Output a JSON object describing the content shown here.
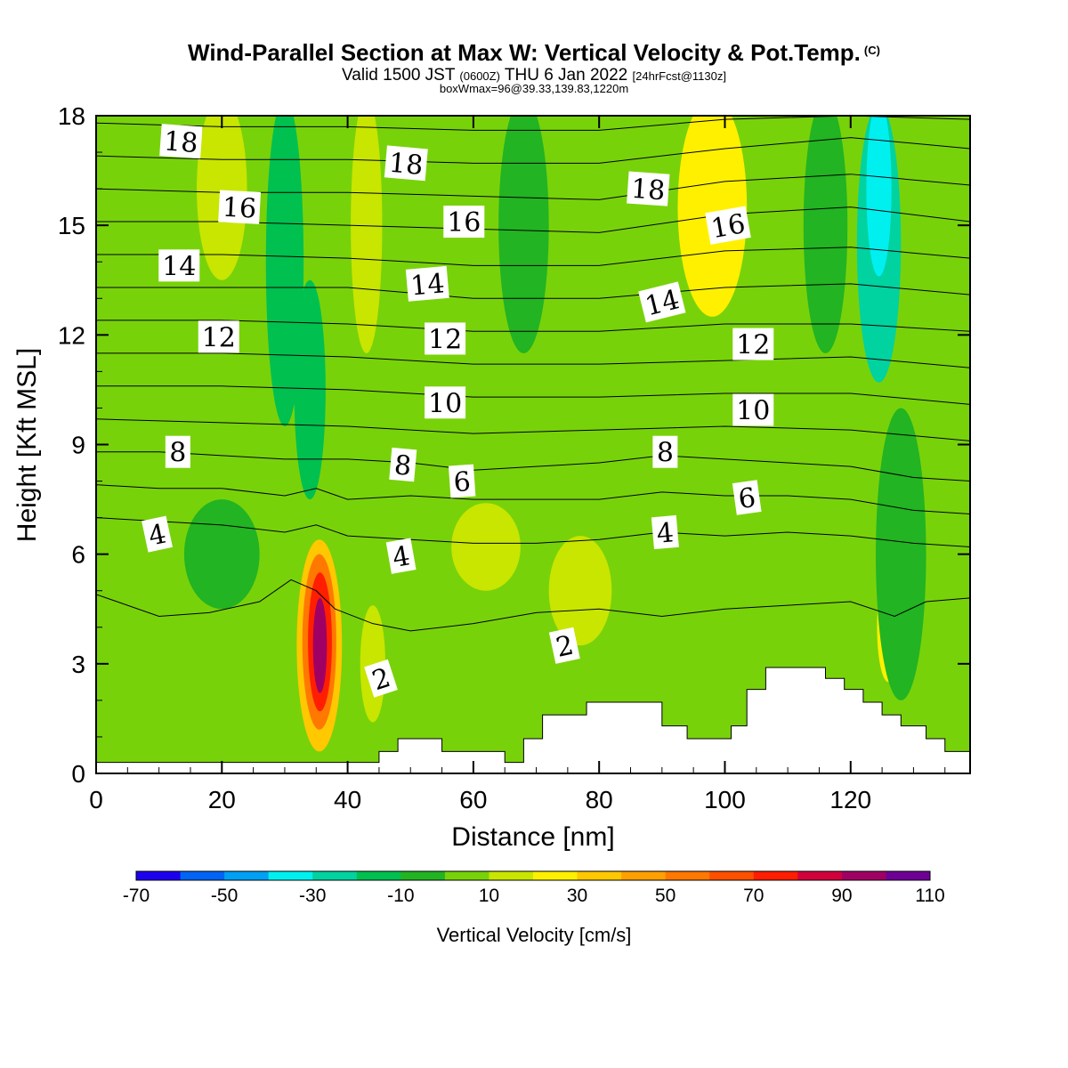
{
  "header": {
    "title": "Wind-Parallel Section at Max W: Vertical Velocity & Pot.Temp.",
    "copyright": "(C)",
    "valid_prefix": "Valid 1500 JST",
    "valid_utc": "(0600Z)",
    "valid_date": "THU 6 Jan 2022",
    "forecast": "[24hrFcst@1130z]",
    "box_info": "boxWmax=96@39.33,139.83,1220m"
  },
  "chart_data": {
    "type": "heatmap",
    "xlabel": "Distance [nm]",
    "ylabel": "Height [Kft MSL]",
    "xlim": [
      0,
      139
    ],
    "ylim": [
      0,
      18
    ],
    "xticks": [
      "0",
      "20",
      "40",
      "60",
      "80",
      "100",
      "120"
    ],
    "yticks": [
      "0",
      "3",
      "6",
      "9",
      "12",
      "15",
      "18"
    ],
    "colorbar": {
      "title": "Vertical Velocity [cm/s]",
      "labels": [
        "-70",
        "-50",
        "-30",
        "-10",
        "10",
        "30",
        "50",
        "70",
        "90",
        "110"
      ],
      "levels": [
        -70,
        -60,
        -50,
        -40,
        -30,
        -20,
        -10,
        0,
        10,
        20,
        30,
        40,
        50,
        60,
        70,
        80,
        90,
        100,
        110
      ],
      "colors": [
        "#1e00f0",
        "#0064f5",
        "#00a0f5",
        "#00f0f0",
        "#00d2a0",
        "#00c050",
        "#22b422",
        "#78d20a",
        "#c8e600",
        "#fff000",
        "#ffc800",
        "#ffa000",
        "#ff7800",
        "#ff5000",
        "#ff1e00",
        "#d2003c",
        "#a00064",
        "#6e0096"
      ]
    },
    "contour_labels": [
      {
        "text": "18",
        "x": 13.5,
        "y": 17.3,
        "angle": 4
      },
      {
        "text": "16",
        "x": 22.8,
        "y": 15.5,
        "angle": 3
      },
      {
        "text": "14",
        "x": 13.2,
        "y": 13.9,
        "angle": 0
      },
      {
        "text": "12",
        "x": 19.5,
        "y": 11.95,
        "angle": 0
      },
      {
        "text": "8",
        "x": 13,
        "y": 8.8,
        "angle": 0
      },
      {
        "text": "4",
        "x": 9.7,
        "y": 6.55,
        "angle": -12
      },
      {
        "text": "18",
        "x": 49.3,
        "y": 16.7,
        "angle": 5
      },
      {
        "text": "16",
        "x": 58.5,
        "y": 15.1,
        "angle": 0
      },
      {
        "text": "14",
        "x": 52.7,
        "y": 13.4,
        "angle": -5
      },
      {
        "text": "12",
        "x": 55.5,
        "y": 11.9,
        "angle": 0
      },
      {
        "text": "10",
        "x": 55.5,
        "y": 10.15,
        "angle": 0
      },
      {
        "text": "8",
        "x": 48.8,
        "y": 8.45,
        "angle": 5
      },
      {
        "text": "6",
        "x": 58.2,
        "y": 8.0,
        "angle": -4
      },
      {
        "text": "4",
        "x": 48.5,
        "y": 5.95,
        "angle": -10
      },
      {
        "text": "2",
        "x": 45.3,
        "y": 2.6,
        "angle": -18
      },
      {
        "text": "2",
        "x": 74.5,
        "y": 3.5,
        "angle": -12
      },
      {
        "text": "18",
        "x": 87.8,
        "y": 16.0,
        "angle": 4
      },
      {
        "text": "16",
        "x": 100.5,
        "y": 15.0,
        "angle": -10
      },
      {
        "text": "14",
        "x": 90,
        "y": 12.9,
        "angle": -14
      },
      {
        "text": "12",
        "x": 104.5,
        "y": 11.75,
        "angle": 0
      },
      {
        "text": "10",
        "x": 104.5,
        "y": 9.95,
        "angle": 0
      },
      {
        "text": "8",
        "x": 90.5,
        "y": 8.8,
        "angle": 0
      },
      {
        "text": "6",
        "x": 103.5,
        "y": 7.55,
        "angle": -8
      },
      {
        "text": "4",
        "x": 90.5,
        "y": 6.6,
        "angle": -5
      }
    ],
    "terrain": [
      [
        0,
        0.3
      ],
      [
        45,
        0.3
      ],
      [
        45,
        0.6
      ],
      [
        48,
        0.6
      ],
      [
        48,
        0.95
      ],
      [
        55,
        0.95
      ],
      [
        55,
        0.6
      ],
      [
        65,
        0.6
      ],
      [
        65,
        0.3
      ],
      [
        68,
        0.3
      ],
      [
        68,
        0.95
      ],
      [
        71,
        0.95
      ],
      [
        71,
        1.6
      ],
      [
        78,
        1.6
      ],
      [
        78,
        1.95
      ],
      [
        90,
        1.95
      ],
      [
        90,
        1.3
      ],
      [
        94,
        1.3
      ],
      [
        94,
        0.95
      ],
      [
        101,
        0.95
      ],
      [
        101,
        1.3
      ],
      [
        103.5,
        1.3
      ],
      [
        103.5,
        2.3
      ],
      [
        106.5,
        2.3
      ],
      [
        106.5,
        2.9
      ],
      [
        116,
        2.9
      ],
      [
        116,
        2.6
      ],
      [
        119,
        2.6
      ],
      [
        119,
        2.3
      ],
      [
        122,
        2.3
      ],
      [
        122,
        1.95
      ],
      [
        125,
        1.95
      ],
      [
        125,
        1.6
      ],
      [
        128,
        1.6
      ],
      [
        128,
        1.3
      ],
      [
        132,
        1.3
      ],
      [
        132,
        0.95
      ],
      [
        135,
        0.95
      ],
      [
        135,
        0.6
      ],
      [
        139,
        0.6
      ]
    ],
    "theta_lines": [
      [
        [
          0,
          4.9
        ],
        [
          10,
          4.3
        ],
        [
          18,
          4.4
        ],
        [
          26,
          4.7
        ],
        [
          31,
          5.3
        ],
        [
          35,
          5.0
        ],
        [
          38,
          4.5
        ],
        [
          44,
          4.1
        ],
        [
          50,
          3.9
        ],
        [
          60,
          4.1
        ],
        [
          70,
          4.4
        ],
        [
          80,
          4.5
        ],
        [
          90,
          4.3
        ],
        [
          100,
          4.5
        ],
        [
          110,
          4.6
        ],
        [
          120,
          4.7
        ],
        [
          127,
          4.3
        ],
        [
          132,
          4.7
        ],
        [
          139,
          4.8
        ]
      ],
      [
        [
          0,
          7.0
        ],
        [
          10,
          6.9
        ],
        [
          20,
          6.8
        ],
        [
          30,
          6.6
        ],
        [
          35,
          6.8
        ],
        [
          40,
          6.5
        ],
        [
          50,
          6.4
        ],
        [
          60,
          6.3
        ],
        [
          70,
          6.3
        ],
        [
          80,
          6.4
        ],
        [
          90,
          6.6
        ],
        [
          100,
          6.5
        ],
        [
          110,
          6.6
        ],
        [
          120,
          6.5
        ],
        [
          130,
          6.3
        ],
        [
          139,
          6.2
        ]
      ],
      [
        [
          0,
          7.9
        ],
        [
          10,
          7.8
        ],
        [
          20,
          7.8
        ],
        [
          30,
          7.6
        ],
        [
          35,
          7.8
        ],
        [
          40,
          7.5
        ],
        [
          50,
          7.6
        ],
        [
          60,
          7.5
        ],
        [
          70,
          7.5
        ],
        [
          80,
          7.5
        ],
        [
          90,
          7.7
        ],
        [
          100,
          7.6
        ],
        [
          110,
          7.6
        ],
        [
          120,
          7.5
        ],
        [
          130,
          7.2
        ],
        [
          139,
          7.1
        ]
      ],
      [
        [
          0,
          8.8
        ],
        [
          10,
          8.8
        ],
        [
          20,
          8.7
        ],
        [
          30,
          8.6
        ],
        [
          40,
          8.6
        ],
        [
          50,
          8.5
        ],
        [
          60,
          8.3
        ],
        [
          70,
          8.4
        ],
        [
          80,
          8.5
        ],
        [
          90,
          8.7
        ],
        [
          100,
          8.6
        ],
        [
          110,
          8.5
        ],
        [
          120,
          8.4
        ],
        [
          130,
          8.1
        ],
        [
          139,
          8.0
        ]
      ],
      [
        [
          0,
          9.7
        ],
        [
          20,
          9.6
        ],
        [
          40,
          9.5
        ],
        [
          60,
          9.3
        ],
        [
          80,
          9.4
        ],
        [
          100,
          9.5
        ],
        [
          120,
          9.4
        ],
        [
          139,
          9.1
        ]
      ],
      [
        [
          0,
          10.6
        ],
        [
          20,
          10.6
        ],
        [
          40,
          10.5
        ],
        [
          60,
          10.3
        ],
        [
          80,
          10.3
        ],
        [
          100,
          10.4
        ],
        [
          120,
          10.4
        ],
        [
          139,
          10.1
        ]
      ],
      [
        [
          0,
          11.5
        ],
        [
          20,
          11.5
        ],
        [
          40,
          11.4
        ],
        [
          60,
          11.2
        ],
        [
          80,
          11.2
        ],
        [
          100,
          11.3
        ],
        [
          120,
          11.4
        ],
        [
          139,
          11.1
        ]
      ],
      [
        [
          0,
          12.4
        ],
        [
          20,
          12.4
        ],
        [
          40,
          12.3
        ],
        [
          60,
          12.1
        ],
        [
          80,
          12.1
        ],
        [
          100,
          12.3
        ],
        [
          120,
          12.3
        ],
        [
          139,
          12.1
        ]
      ],
      [
        [
          0,
          13.3
        ],
        [
          20,
          13.3
        ],
        [
          40,
          13.3
        ],
        [
          60,
          13.0
        ],
        [
          80,
          13.0
        ],
        [
          100,
          13.3
        ],
        [
          120,
          13.4
        ],
        [
          139,
          13.1
        ]
      ],
      [
        [
          0,
          14.2
        ],
        [
          20,
          14.2
        ],
        [
          40,
          14.1
        ],
        [
          60,
          13.9
        ],
        [
          80,
          13.9
        ],
        [
          100,
          14.3
        ],
        [
          120,
          14.4
        ],
        [
          139,
          14.1
        ]
      ],
      [
        [
          0,
          15.1
        ],
        [
          20,
          15.1
        ],
        [
          40,
          15.0
        ],
        [
          60,
          14.9
        ],
        [
          80,
          14.8
        ],
        [
          100,
          15.3
        ],
        [
          120,
          15.5
        ],
        [
          139,
          15.1
        ]
      ],
      [
        [
          0,
          16.0
        ],
        [
          20,
          15.9
        ],
        [
          40,
          15.9
        ],
        [
          60,
          15.8
        ],
        [
          80,
          15.7
        ],
        [
          100,
          16.2
        ],
        [
          120,
          16.4
        ],
        [
          139,
          16.1
        ]
      ],
      [
        [
          0,
          16.9
        ],
        [
          20,
          16.8
        ],
        [
          40,
          16.8
        ],
        [
          60,
          16.7
        ],
        [
          80,
          16.7
        ],
        [
          100,
          17.1
        ],
        [
          120,
          17.4
        ],
        [
          139,
          17.1
        ]
      ],
      [
        [
          0,
          17.8
        ],
        [
          20,
          17.7
        ],
        [
          40,
          17.7
        ],
        [
          60,
          17.6
        ],
        [
          80,
          17.6
        ],
        [
          100,
          17.9
        ],
        [
          120,
          18.0
        ],
        [
          139,
          17.9
        ]
      ]
    ],
    "field_features": [
      {
        "kind": "base",
        "value": 5
      },
      {
        "kind": "blob",
        "x": 35.5,
        "y": 3.5,
        "rx": 3.6,
        "ry": 2.9,
        "value": 35
      },
      {
        "kind": "blob",
        "x": 35.5,
        "y": 3.6,
        "rx": 2.7,
        "ry": 2.4,
        "value": 50
      },
      {
        "kind": "blob",
        "x": 35.6,
        "y": 3.6,
        "rx": 1.9,
        "ry": 1.9,
        "value": 70
      },
      {
        "kind": "blob",
        "x": 35.6,
        "y": 3.5,
        "rx": 1.1,
        "ry": 1.3,
        "value": 95
      },
      {
        "kind": "blob",
        "x": 124.5,
        "y": 14.5,
        "rx": 3.5,
        "ry": 3.8,
        "value": -25
      },
      {
        "kind": "blob",
        "x": 124.5,
        "y": 16.0,
        "rx": 2.0,
        "ry": 2.4,
        "value": -40
      },
      {
        "kind": "blob",
        "x": 98,
        "y": 15.5,
        "rx": 5.5,
        "ry": 3.0,
        "value": 22
      },
      {
        "kind": "blob",
        "x": 126,
        "y": 4.0,
        "rx": 1.8,
        "ry": 1.5,
        "value": 25
      },
      {
        "kind": "blob",
        "x": 62,
        "y": 6.2,
        "rx": 5.5,
        "ry": 1.2,
        "value": 15
      },
      {
        "kind": "blob",
        "x": 77,
        "y": 5.0,
        "rx": 5.0,
        "ry": 1.5,
        "value": 15
      },
      {
        "kind": "blob",
        "x": 44,
        "y": 3.0,
        "rx": 2.0,
        "ry": 1.6,
        "value": 15
      },
      {
        "kind": "blob",
        "x": 43,
        "y": 15.0,
        "rx": 2.5,
        "ry": 3.5,
        "value": 13
      },
      {
        "kind": "blob",
        "x": 20,
        "y": 16.0,
        "rx": 4.0,
        "ry": 2.5,
        "value": 12
      },
      {
        "kind": "blob",
        "x": 30,
        "y": 14.0,
        "rx": 3.0,
        "ry": 4.5,
        "value": -12
      },
      {
        "kind": "blob",
        "x": 34,
        "y": 10.5,
        "rx": 2.5,
        "ry": 3.0,
        "value": -14
      },
      {
        "kind": "blob",
        "x": 68,
        "y": 15.0,
        "rx": 4.0,
        "ry": 3.5,
        "value": -3
      },
      {
        "kind": "blob",
        "x": 116,
        "y": 15.0,
        "rx": 3.5,
        "ry": 3.5,
        "value": -3
      },
      {
        "kind": "blob",
        "x": 20,
        "y": 6.0,
        "rx": 6.0,
        "ry": 1.5,
        "value": -3
      },
      {
        "kind": "blob",
        "x": 128,
        "y": 6.0,
        "rx": 4.0,
        "ry": 4.0,
        "value": -5
      }
    ]
  }
}
